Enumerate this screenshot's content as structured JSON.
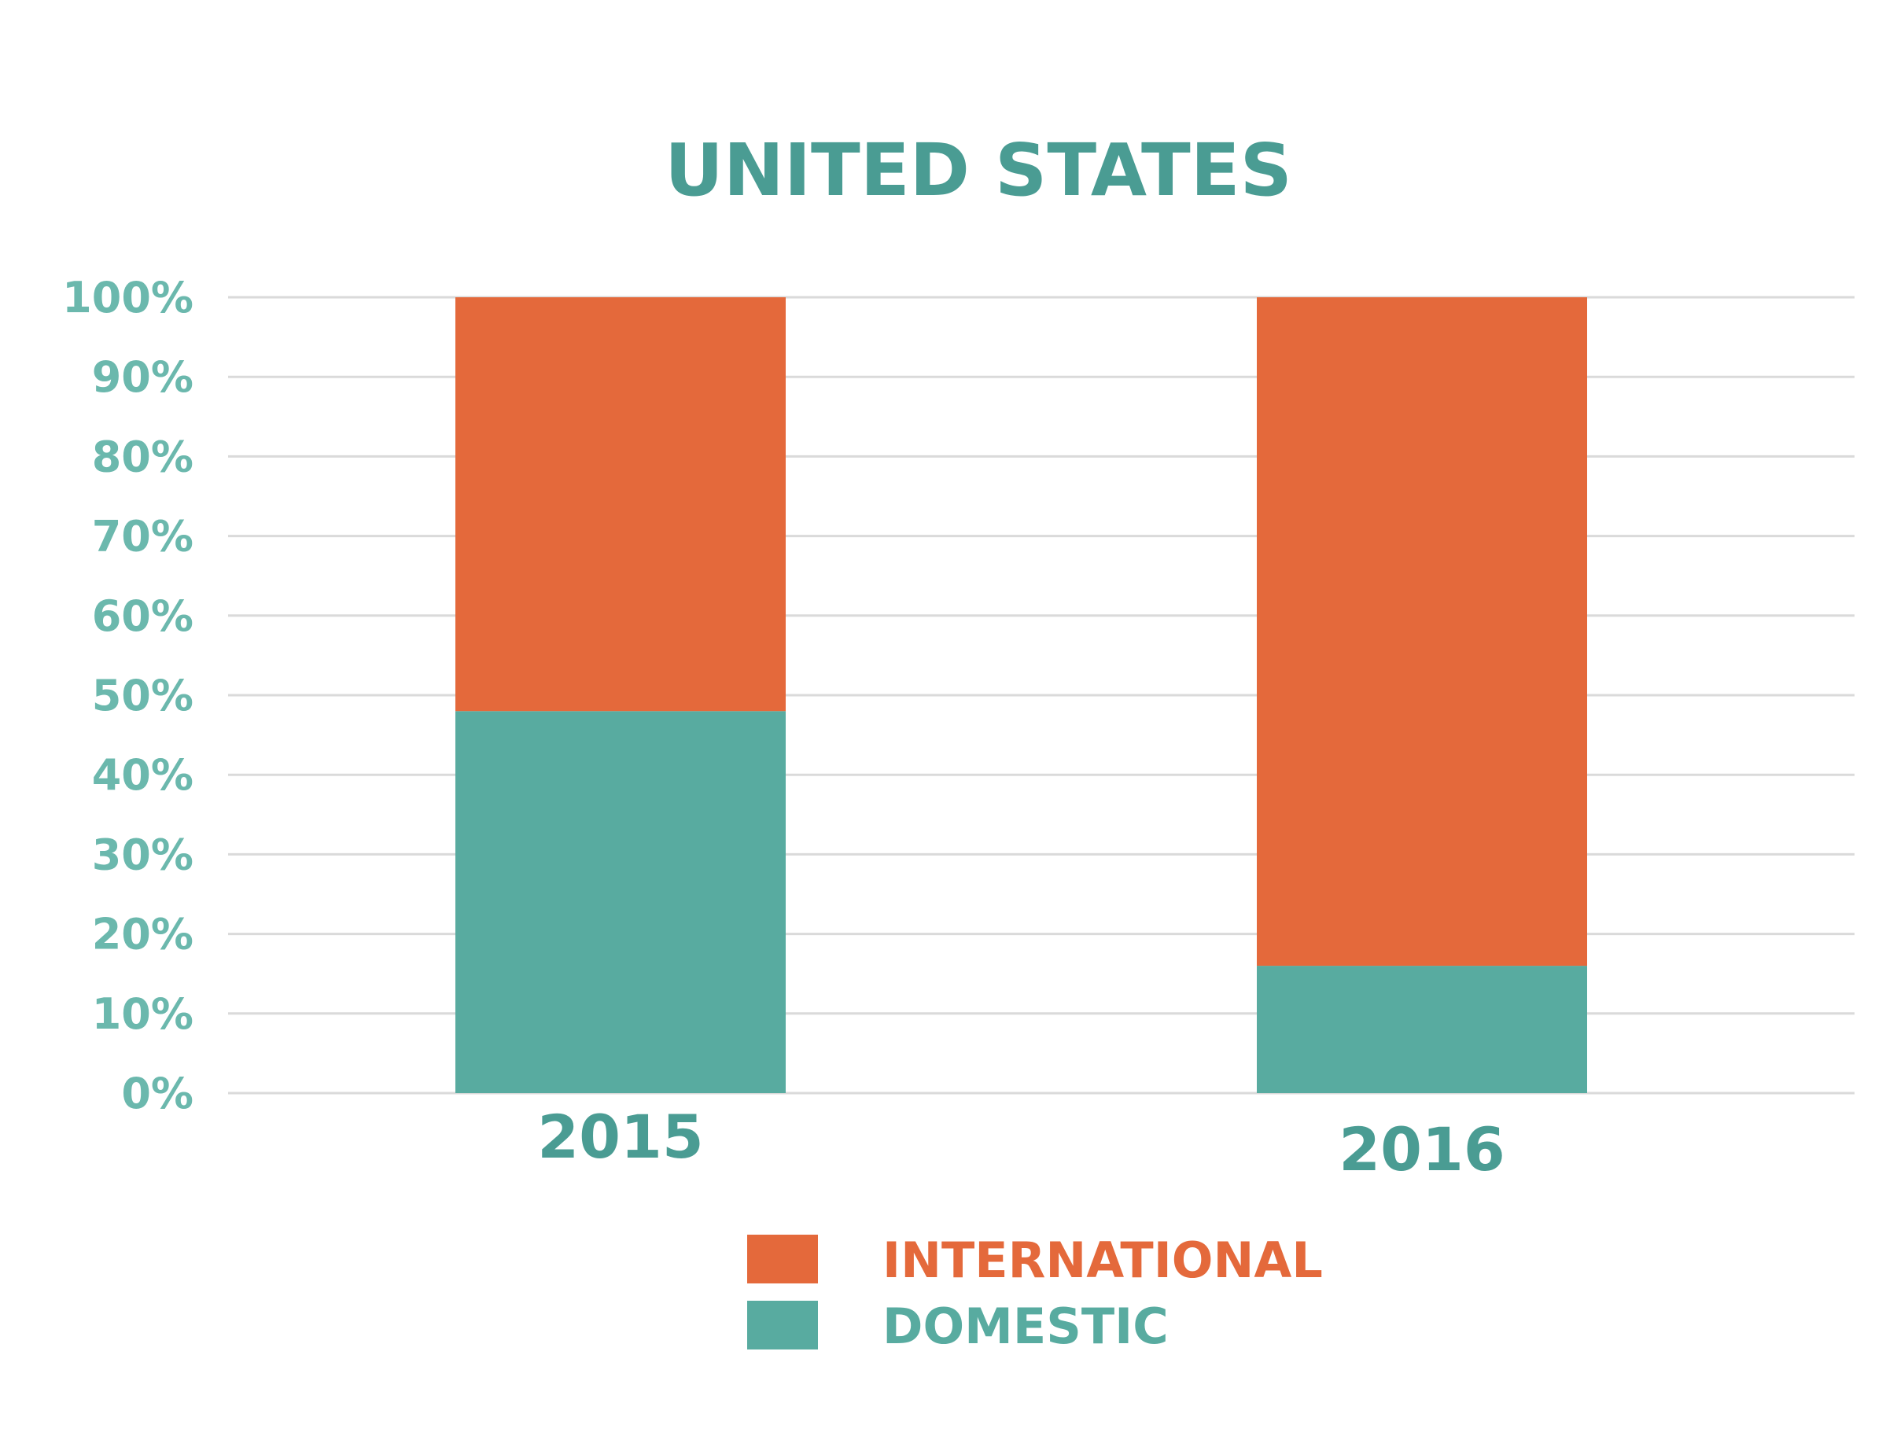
{
  "chart_data": {
    "type": "bar",
    "stacked": true,
    "title": "UNITED STATES",
    "xlabel": "",
    "ylabel": "",
    "categories": [
      "2015",
      "2016"
    ],
    "ylim": [
      0,
      100
    ],
    "yticks": [
      {
        "value": 0,
        "label": "0%"
      },
      {
        "value": 10,
        "label": "10%"
      },
      {
        "value": 20,
        "label": "20%"
      },
      {
        "value": 30,
        "label": "30%"
      },
      {
        "value": 40,
        "label": "40%"
      },
      {
        "value": 50,
        "label": "50%"
      },
      {
        "value": 60,
        "label": "60%"
      },
      {
        "value": 70,
        "label": "70%"
      },
      {
        "value": 80,
        "label": "80%"
      },
      {
        "value": 90,
        "label": "90%"
      },
      {
        "value": 100,
        "label": "100%"
      }
    ],
    "series": [
      {
        "name": "DOMESTIC",
        "values": [
          48,
          16
        ],
        "color": "#58ABA0"
      },
      {
        "name": "INTERNATIONAL",
        "values": [
          52,
          84
        ],
        "color": "#E4693B"
      }
    ],
    "legend": {
      "placement": "bottom-center",
      "items": [
        {
          "label": "INTERNATIONAL",
          "color": "#E4693B"
        },
        {
          "label": "DOMESTIC",
          "color": "#58ABA0"
        }
      ]
    },
    "grid": true,
    "colors": {
      "title": "#4A9C93",
      "tick_labels": "#6BB8AD",
      "category_labels": "#4A9C93",
      "gridline": "#DADADA"
    }
  }
}
